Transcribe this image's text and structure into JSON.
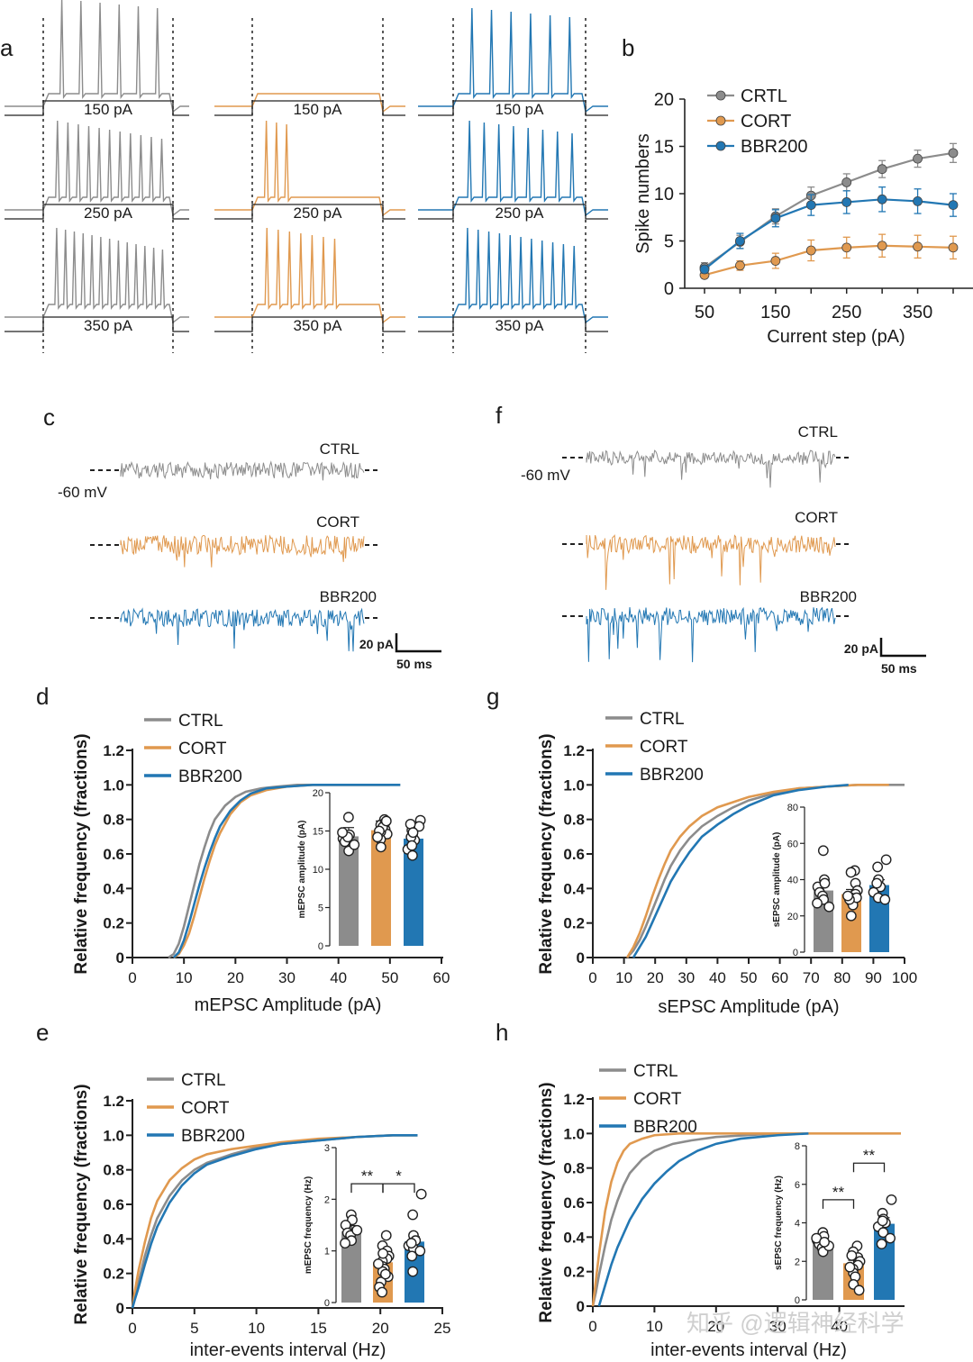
{
  "colors": {
    "CTRL": "#8c8c8c",
    "CORT": "#e0994f",
    "BBR200": "#2277b3"
  },
  "panel_letters": {
    "a": "a",
    "b": "b",
    "c": "c",
    "d": "d",
    "e": "e",
    "f": "f",
    "g": "g",
    "h": "h"
  },
  "panel_a": {
    "current_labels": [
      "150 pA",
      "250 pA",
      "350 pA"
    ]
  },
  "panel_cf": {
    "c": {
      "labels": [
        "CTRL",
        "CORT",
        "BBR200"
      ],
      "voltage": "-60 mV",
      "scale_y": "20 pA",
      "scale_x": "50 ms"
    },
    "f": {
      "labels": [
        "CTRL",
        "CORT",
        "BBR200"
      ],
      "voltage": "-60 mV",
      "scale_y": "20 pA",
      "scale_x": "50 ms"
    }
  },
  "watermark": "知乎 @逻辑神经科学",
  "chart_data": [
    {
      "id": "b",
      "type": "line",
      "xlabel": "Current step (pA)",
      "ylabel": "Spike numbers",
      "x": [
        50,
        100,
        150,
        200,
        250,
        300,
        350,
        400
      ],
      "xticks": [
        50,
        150,
        250,
        350
      ],
      "yticks": [
        0,
        5,
        10,
        15,
        20
      ],
      "ylim": [
        0,
        20
      ],
      "legend": "top-left",
      "series": [
        {
          "name": "CRTL",
          "color_key": "CTRL",
          "values": [
            2.2,
            4.9,
            7.6,
            9.8,
            11.2,
            12.6,
            13.7,
            14.3
          ],
          "err": [
            0.5,
            0.7,
            0.8,
            0.9,
            0.9,
            0.9,
            0.9,
            1.0
          ]
        },
        {
          "name": "CORT",
          "color_key": "CORT",
          "values": [
            1.4,
            2.4,
            2.9,
            4.0,
            4.3,
            4.5,
            4.4,
            4.3
          ],
          "err": [
            0.3,
            0.5,
            0.8,
            1.1,
            1.1,
            1.2,
            1.2,
            1.2
          ]
        },
        {
          "name": "BBR200",
          "color_key": "BBR200",
          "values": [
            2.0,
            5.0,
            7.4,
            8.8,
            9.1,
            9.4,
            9.2,
            8.8
          ],
          "err": [
            0.4,
            0.8,
            0.9,
            1.1,
            1.2,
            1.3,
            1.3,
            1.2
          ]
        }
      ]
    },
    {
      "id": "d",
      "type": "line",
      "xlabel": "mEPSC Amplitude (pA)",
      "ylabel": "Relative frequency (fractions)",
      "xticks": [
        0,
        10,
        20,
        30,
        40,
        50,
        60
      ],
      "yticks": [
        0,
        0.2,
        0.4,
        0.6,
        0.8,
        1.0,
        1.2
      ],
      "xlim": [
        0,
        60
      ],
      "ylim": [
        0,
        1.2
      ],
      "legend": "top-left",
      "series": [
        {
          "name": "CTRL",
          "color_key": "CTRL",
          "x": [
            7,
            8,
            9,
            10,
            11,
            12,
            13,
            14,
            15,
            16,
            18,
            20,
            22,
            25,
            28,
            32,
            38,
            45,
            52
          ],
          "y": [
            0,
            0.02,
            0.08,
            0.18,
            0.3,
            0.42,
            0.54,
            0.64,
            0.73,
            0.8,
            0.88,
            0.93,
            0.96,
            0.98,
            0.99,
            1.0,
            1.0,
            1.0,
            1.0
          ]
        },
        {
          "name": "CORT",
          "color_key": "CORT",
          "x": [
            8,
            9,
            10,
            11,
            12,
            13,
            14,
            15,
            16,
            17,
            19,
            21,
            23,
            26,
            30,
            35,
            42,
            50
          ],
          "y": [
            0,
            0.02,
            0.07,
            0.14,
            0.24,
            0.35,
            0.46,
            0.56,
            0.65,
            0.72,
            0.83,
            0.9,
            0.94,
            0.97,
            0.99,
            1.0,
            1.0,
            1.0
          ]
        },
        {
          "name": "BBR200",
          "color_key": "BBR200",
          "x": [
            8,
            9,
            10,
            11,
            12,
            13,
            14,
            15,
            16,
            17,
            19,
            21,
            23,
            26,
            30,
            35,
            42,
            52
          ],
          "y": [
            0,
            0.03,
            0.1,
            0.2,
            0.31,
            0.42,
            0.52,
            0.61,
            0.69,
            0.76,
            0.85,
            0.91,
            0.95,
            0.98,
            0.99,
            1.0,
            1.0,
            1.0
          ]
        }
      ],
      "inset": {
        "ylabel": "mEPSC amplitude (pA)",
        "yticks": [
          0,
          5,
          10,
          15,
          20
        ],
        "ylim": [
          0,
          20
        ],
        "bars": [
          {
            "name": "CTRL",
            "color_key": "CTRL",
            "mean": 14.3,
            "points": [
              16.8,
              14.5,
              14.0,
              13.6,
              14.2,
              12.4,
              14.8,
              13.2
            ]
          },
          {
            "name": "CORT",
            "color_key": "CORT",
            "mean": 15.1,
            "points": [
              16.5,
              15.8,
              15.2,
              14.6,
              16.1,
              13.9,
              14.9,
              15.5,
              12.9,
              16.3,
              15.0,
              14.2
            ]
          },
          {
            "name": "BBR200",
            "color_key": "BBR200",
            "mean": 14.0,
            "points": [
              16.4,
              15.1,
              14.5,
              13.8,
              12.6,
              11.8,
              15.6,
              14.2,
              13.1,
              15.9,
              14.8
            ]
          }
        ]
      }
    },
    {
      "id": "e",
      "type": "line",
      "xlabel": "inter-events interval (Hz)",
      "ylabel": "Relative frequency (fractions)",
      "xticks": [
        0,
        5,
        10,
        15,
        20,
        25
      ],
      "yticks": [
        0,
        0.2,
        0.4,
        0.6,
        0.8,
        1.0,
        1.2
      ],
      "xlim": [
        0,
        25
      ],
      "ylim": [
        0,
        1.2
      ],
      "legend": "top-left",
      "series": [
        {
          "name": "CTRL",
          "color_key": "CTRL",
          "x": [
            0,
            0.2,
            0.5,
            1,
            1.5,
            2,
            3,
            4,
            5,
            6,
            8,
            10,
            12,
            15,
            18,
            21,
            23
          ],
          "y": [
            0,
            0.06,
            0.15,
            0.3,
            0.42,
            0.52,
            0.65,
            0.74,
            0.8,
            0.84,
            0.89,
            0.93,
            0.95,
            0.97,
            0.99,
            1.0,
            1.0
          ]
        },
        {
          "name": "CORT",
          "color_key": "CORT",
          "x": [
            0,
            0.2,
            0.5,
            1,
            1.5,
            2,
            3,
            4,
            5,
            6,
            8,
            10,
            12,
            15,
            18,
            21,
            23
          ],
          "y": [
            0,
            0.1,
            0.22,
            0.38,
            0.52,
            0.62,
            0.74,
            0.81,
            0.86,
            0.89,
            0.92,
            0.94,
            0.96,
            0.98,
            0.99,
            1.0,
            1.0
          ]
        },
        {
          "name": "BBR200",
          "color_key": "BBR200",
          "x": [
            0,
            0.2,
            0.5,
            1,
            1.5,
            2,
            3,
            4,
            5,
            6,
            8,
            10,
            12,
            15,
            18,
            21,
            23
          ],
          "y": [
            0,
            0.05,
            0.12,
            0.25,
            0.37,
            0.47,
            0.61,
            0.71,
            0.78,
            0.83,
            0.88,
            0.92,
            0.95,
            0.97,
            0.99,
            1.0,
            1.0
          ]
        }
      ],
      "inset": {
        "ylabel": "mEPSC frequency (Hz)",
        "yticks": [
          0,
          1,
          2,
          3
        ],
        "ylim": [
          0,
          3
        ],
        "bars": [
          {
            "name": "CTRL",
            "color_key": "CTRL",
            "mean": 1.38,
            "points": [
              1.7,
              1.6,
              1.5,
              1.35,
              1.3,
              1.2,
              1.15,
              1.4
            ]
          },
          {
            "name": "CORT",
            "color_key": "CORT",
            "mean": 0.78,
            "points": [
              1.3,
              1.1,
              1.0,
              0.9,
              0.85,
              0.8,
              0.7,
              0.65,
              0.6,
              0.5,
              0.4,
              0.3,
              0.2,
              0.95,
              0.75,
              0.55
            ]
          },
          {
            "name": "BBR200",
            "color_key": "BBR200",
            "mean": 1.18,
            "points": [
              2.1,
              1.7,
              1.3,
              1.2,
              1.1,
              1.05,
              1.0,
              0.9,
              0.6,
              1.15
            ]
          }
        ],
        "significance": [
          {
            "from": 0,
            "to": 1,
            "label": "**",
            "level": 2.3
          },
          {
            "from": 1,
            "to": 2,
            "label": "*",
            "level": 2.3
          }
        ]
      }
    },
    {
      "id": "g",
      "type": "line",
      "xlabel": "sEPSC Amplitude (pA)",
      "ylabel": "Relative frequency (fractions)",
      "xticks": [
        0,
        10,
        20,
        30,
        40,
        50,
        60,
        70,
        80,
        90,
        100
      ],
      "yticks": [
        0,
        0.2,
        0.4,
        0.6,
        0.8,
        1.0,
        1.2
      ],
      "xlim": [
        0,
        100
      ],
      "ylim": [
        0,
        1.2
      ],
      "legend": "top-left",
      "series": [
        {
          "name": "CTRL",
          "color_key": "CTRL",
          "x": [
            11,
            13,
            15,
            17,
            19,
            21,
            23,
            25,
            28,
            31,
            35,
            40,
            45,
            50,
            58,
            66,
            75,
            85,
            100
          ],
          "y": [
            0,
            0.04,
            0.1,
            0.18,
            0.27,
            0.36,
            0.45,
            0.53,
            0.62,
            0.69,
            0.76,
            0.82,
            0.87,
            0.91,
            0.95,
            0.98,
            0.99,
            1.0,
            1.0
          ]
        },
        {
          "name": "CORT",
          "color_key": "CORT",
          "x": [
            11,
            13,
            15,
            17,
            19,
            21,
            23,
            25,
            28,
            31,
            35,
            40,
            45,
            50,
            58,
            66,
            75,
            85,
            95
          ],
          "y": [
            0,
            0.06,
            0.14,
            0.24,
            0.35,
            0.45,
            0.54,
            0.62,
            0.7,
            0.76,
            0.82,
            0.87,
            0.9,
            0.93,
            0.96,
            0.98,
            0.99,
            1.0,
            1.0
          ]
        },
        {
          "name": "BBR200",
          "color_key": "BBR200",
          "x": [
            13,
            15,
            17,
            19,
            21,
            23,
            25,
            28,
            31,
            35,
            40,
            45,
            50,
            58,
            66,
            75,
            82
          ],
          "y": [
            0,
            0.06,
            0.12,
            0.2,
            0.28,
            0.36,
            0.44,
            0.53,
            0.61,
            0.7,
            0.77,
            0.83,
            0.88,
            0.94,
            0.97,
            0.99,
            1.0
          ]
        }
      ],
      "inset": {
        "ylabel": "sEPSC amplitude (pA)",
        "yticks": [
          0,
          20,
          40,
          60,
          80
        ],
        "ylim": [
          0,
          80
        ],
        "bars": [
          {
            "name": "CTRL",
            "color_key": "CTRL",
            "mean": 34,
            "points": [
              56,
              40,
              36,
              33,
              31,
              29,
              27,
              25,
              38
            ]
          },
          {
            "name": "CORT",
            "color_key": "CORT",
            "mean": 32,
            "points": [
              45,
              44,
              38,
              34,
              32,
              30,
              28,
              26,
              20,
              30,
              29,
              31
            ]
          },
          {
            "name": "BBR200",
            "color_key": "BBR200",
            "mean": 37,
            "points": [
              51,
              47,
              40,
              36,
              33,
              30,
              29,
              38
            ]
          }
        ]
      }
    },
    {
      "id": "h",
      "type": "line",
      "xlabel": "inter-events interval (Hz)",
      "ylabel": "Relative frequency (fractions)",
      "xticks": [
        0,
        10,
        20,
        30,
        40
      ],
      "yticks": [
        0,
        0.2,
        0.4,
        0.6,
        0.8,
        1.0,
        1.2
      ],
      "xlim": [
        0,
        50
      ],
      "ylim": [
        0,
        1.2
      ],
      "legend": "top-left",
      "series": [
        {
          "name": "CTRL",
          "color_key": "CTRL",
          "x": [
            0,
            0.5,
            1,
            2,
            3,
            4,
            5,
            6,
            8,
            10,
            13,
            16,
            20,
            25,
            30
          ],
          "y": [
            0,
            0.08,
            0.18,
            0.35,
            0.5,
            0.61,
            0.7,
            0.77,
            0.85,
            0.9,
            0.94,
            0.96,
            0.98,
            0.99,
            1.0
          ]
        },
        {
          "name": "CORT",
          "color_key": "CORT",
          "x": [
            0,
            0.5,
            1,
            2,
            3,
            4,
            5,
            6,
            8,
            10,
            14,
            20,
            50
          ],
          "y": [
            0,
            0.15,
            0.3,
            0.55,
            0.72,
            0.83,
            0.9,
            0.94,
            0.97,
            0.99,
            1.0,
            1.0,
            1.0
          ]
        },
        {
          "name": "BBR200",
          "color_key": "BBR200",
          "x": [
            1,
            2,
            3,
            4,
            5,
            6,
            8,
            10,
            12,
            14,
            17,
            20,
            24,
            30,
            35
          ],
          "y": [
            0,
            0.12,
            0.24,
            0.34,
            0.42,
            0.5,
            0.62,
            0.71,
            0.78,
            0.84,
            0.9,
            0.94,
            0.97,
            0.99,
            1.0
          ]
        }
      ],
      "inset": {
        "ylabel": "sEPSC frequency (Hz)",
        "yticks": [
          0,
          2,
          4,
          6,
          8
        ],
        "ylim": [
          0,
          8
        ],
        "bars": [
          {
            "name": "CTRL",
            "color_key": "CTRL",
            "mean": 2.95,
            "points": [
              3.5,
              3.3,
              3.1,
              2.9,
              2.7,
              2.5,
              3.2,
              2.8,
              3.0
            ]
          },
          {
            "name": "CORT",
            "color_key": "CORT",
            "mean": 1.9,
            "points": [
              2.8,
              2.5,
              2.2,
              2.0,
              1.8,
              1.6,
              1.4,
              1.2,
              0.8,
              0.5,
              2.3,
              1.7
            ]
          },
          {
            "name": "BBR200",
            "color_key": "BBR200",
            "mean": 3.95,
            "points": [
              5.2,
              4.5,
              4.2,
              4.0,
              3.8,
              3.5,
              3.2,
              2.9,
              4.1
            ]
          }
        ],
        "significance": [
          {
            "from": 0,
            "to": 1,
            "label": "**",
            "level": 5.2
          },
          {
            "from": 1,
            "to": 2,
            "label": "**",
            "level": 7.1
          }
        ]
      }
    }
  ]
}
